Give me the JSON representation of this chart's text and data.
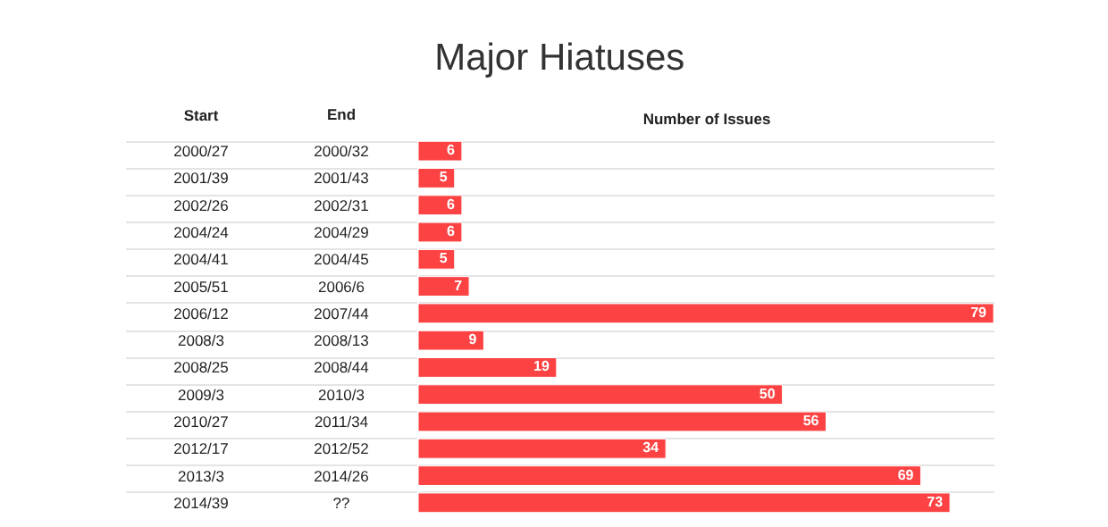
{
  "chart_data": {
    "type": "bar",
    "orientation": "horizontal",
    "title": "Major Hiatuses",
    "ylabel": "Start",
    "xlabel": "Number of Issues",
    "categories": [
      "2000/27",
      "2001/39",
      "2002/26",
      "2004/24",
      "2004/41",
      "2005/51",
      "2006/12",
      "2008/3",
      "2008/25",
      "2009/3",
      "2010/27",
      "2012/17",
      "2013/3",
      "2014/39"
    ],
    "series": [
      {
        "color": "#fc4242",
        "values": [
          6,
          5,
          6,
          6,
          5,
          7,
          79,
          9,
          19,
          50,
          56,
          34,
          69,
          73
        ]
      }
    ],
    "data_labels": true,
    "grid": "y",
    "annotations": [
      "End",
      "2000/32",
      "2001/43",
      "2002/31",
      "2004/29",
      "2004/45",
      "2006/6",
      "2007/44",
      "2008/13",
      "2008/44",
      "2010/3",
      "2011/34",
      "2012/52",
      "2014/26",
      "??"
    ]
  }
}
